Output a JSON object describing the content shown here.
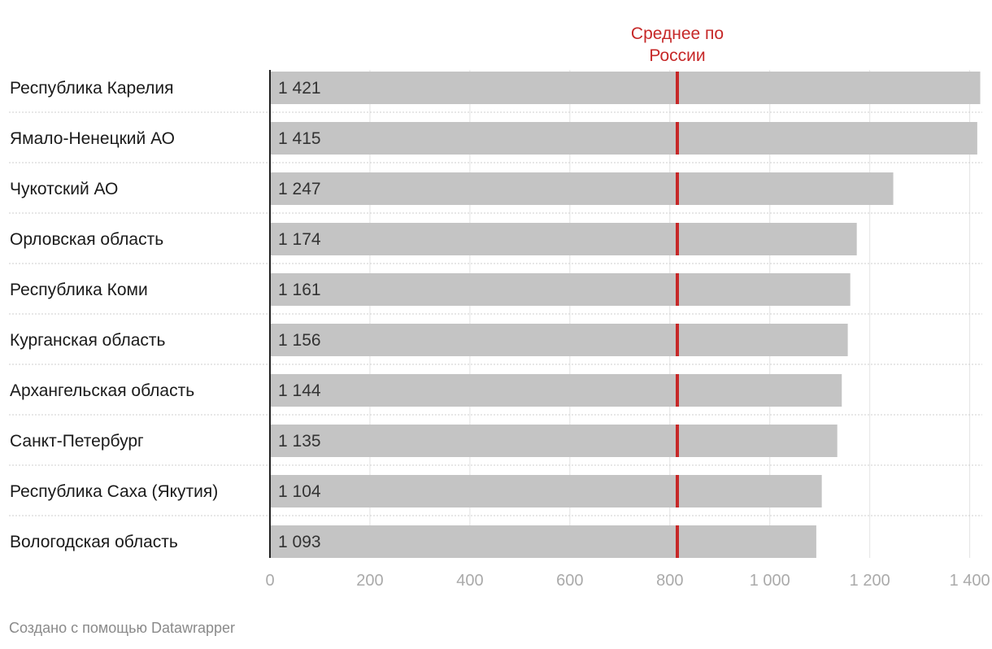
{
  "chart_data": {
    "type": "bar",
    "orientation": "horizontal",
    "categories": [
      "Республика Карелия",
      "Ямало-Ненецкий АО",
      "Чукотский АО",
      "Орловская область",
      "Республика Коми",
      "Курганская область",
      "Архангельская область",
      "Санкт-Петербург",
      "Республика Саха (Якутия)",
      "Вологодская область"
    ],
    "values": [
      1421,
      1415,
      1247,
      1174,
      1161,
      1156,
      1144,
      1135,
      1104,
      1093
    ],
    "value_labels": [
      "1 421",
      "1 415",
      "1 247",
      "1 174",
      "1 161",
      "1 156",
      "1 144",
      "1 135",
      "1 104",
      "1 093"
    ],
    "xlim": [
      0,
      1425
    ],
    "xticks": [
      0,
      200,
      400,
      600,
      800,
      1000,
      1200,
      1400
    ],
    "xtick_labels": [
      "0",
      "200",
      "400",
      "600",
      "800",
      "1 000",
      "1 200",
      "1 400"
    ],
    "reference_line": {
      "value": 815,
      "label_lines": [
        "Среднее по",
        "России"
      ],
      "color": "#c62828"
    },
    "bar_color": "#c4c4c4",
    "grid": true
  },
  "footer": {
    "credit": "Создано с помощью Datawrapper"
  }
}
